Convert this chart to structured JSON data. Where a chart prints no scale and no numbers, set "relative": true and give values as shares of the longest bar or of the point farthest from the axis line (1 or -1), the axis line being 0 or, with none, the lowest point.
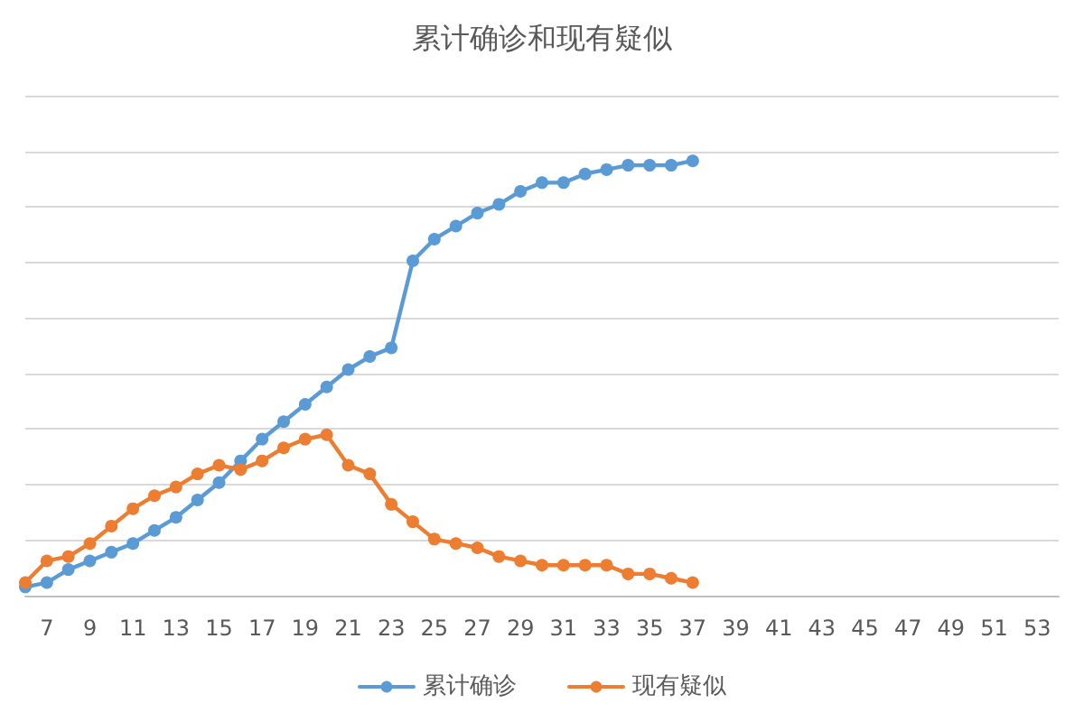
{
  "chart_data": {
    "type": "line",
    "title": "累计确诊和现有疑似",
    "categories": [
      null,
      "7",
      null,
      "9",
      null,
      "11",
      null,
      "13",
      null,
      "15",
      null,
      "17",
      null,
      "19",
      null,
      "21",
      null,
      "23",
      null,
      "25",
      null,
      "27",
      null,
      "29",
      null,
      "31",
      null,
      "33",
      null,
      "35",
      null,
      "37",
      null,
      "39",
      null,
      "41",
      null,
      "43",
      null,
      "45",
      null,
      "47",
      null,
      "49",
      null,
      "51",
      null,
      "53",
      null
    ],
    "series": [
      {
        "name": "累计确诊",
        "color": "#5b9bd5",
        "values": [
          0.02,
          0.03,
          0.06,
          0.08,
          0.1,
          0.12,
          0.15,
          0.18,
          0.22,
          0.26,
          0.31,
          0.36,
          0.4,
          0.44,
          0.48,
          0.52,
          0.55,
          0.57,
          0.77,
          0.82,
          0.85,
          0.88,
          0.9,
          0.93,
          0.95,
          0.95,
          0.97,
          0.98,
          0.99,
          0.99,
          0.99,
          1,
          null,
          null,
          null,
          null,
          null,
          null,
          null,
          null,
          null,
          null,
          null,
          null,
          null,
          null,
          null,
          null,
          null
        ]
      },
      {
        "name": "现有疑似",
        "color": "#ed7d31",
        "values": [
          0.03,
          0.08,
          0.09,
          0.12,
          0.16,
          0.2,
          0.23,
          0.25,
          0.28,
          0.3,
          0.29,
          0.31,
          0.34,
          0.36,
          0.37,
          0.3,
          0.28,
          0.21,
          0.17,
          0.13,
          0.12,
          0.11,
          0.09,
          0.08,
          0.07,
          0.07,
          0.07,
          0.07,
          0.05,
          0.05,
          0.04,
          0.03,
          null,
          null,
          null,
          null,
          null,
          null,
          null,
          null,
          null,
          null,
          null,
          null,
          null,
          null,
          null,
          null,
          null
        ]
      }
    ],
    "relative": true,
    "grid": "y",
    "legend": "bottom",
    "marker": "circle",
    "line_style": "solid"
  }
}
